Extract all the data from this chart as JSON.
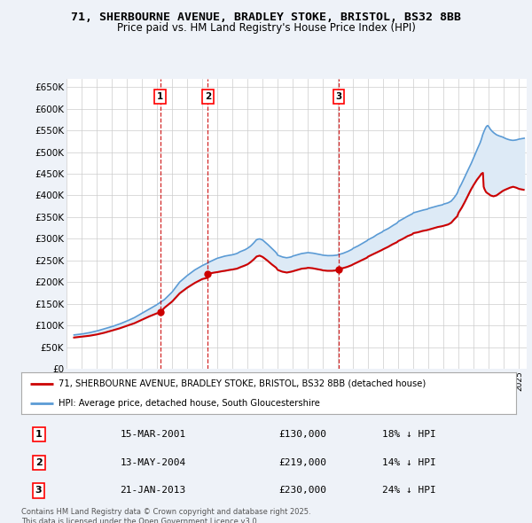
{
  "title": "71, SHERBOURNE AVENUE, BRADLEY STOKE, BRISTOL, BS32 8BB",
  "subtitle": "Price paid vs. HM Land Registry's House Price Index (HPI)",
  "legend_line1": "71, SHERBOURNE AVENUE, BRADLEY STOKE, BRISTOL, BS32 8BB (detached house)",
  "legend_line2": "HPI: Average price, detached house, South Gloucestershire",
  "footer": "Contains HM Land Registry data © Crown copyright and database right 2025.\nThis data is licensed under the Open Government Licence v3.0.",
  "transactions": [
    {
      "num": 1,
      "date": "15-MAR-2001",
      "price": "£130,000",
      "change": "18% ↓ HPI",
      "year": 2001.21,
      "price_val": 130000
    },
    {
      "num": 2,
      "date": "13-MAY-2004",
      "price": "£219,000",
      "change": "14% ↓ HPI",
      "year": 2004.37,
      "price_val": 219000
    },
    {
      "num": 3,
      "date": "21-JAN-2013",
      "price": "£230,000",
      "change": "24% ↓ HPI",
      "year": 2013.05,
      "price_val": 230000
    }
  ],
  "hpi_color": "#5b9bd5",
  "hpi_fill_color": "#ddeaf6",
  "price_color": "#cc0000",
  "dashed_color": "#cc0000",
  "background_color": "#eef2f8",
  "plot_bg": "#ffffff",
  "ylim": [
    0,
    670000
  ],
  "ytick_step": 50000,
  "xlim_start": 1995.5,
  "xlim_end": 2025.5
}
